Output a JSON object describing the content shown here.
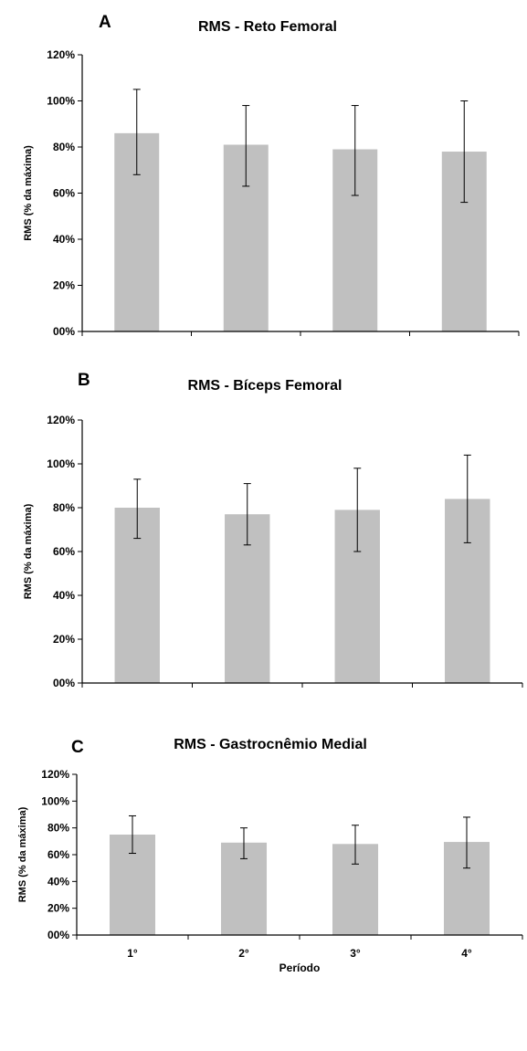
{
  "figure": {
    "xlabel": "Período",
    "ylabel": "RMS (% da máxima)",
    "bar_color": "#c0c0c0",
    "axis_color": "#000000",
    "error_bar_color": "#000000"
  },
  "chart_data": [
    {
      "type": "bar",
      "panel": "A",
      "title": "RMS - Reto Femoral",
      "ylabel": "RMS (% da máxima)",
      "xlabel": "",
      "categories": [
        "1°",
        "2°",
        "3°",
        "4°"
      ],
      "show_category_labels": false,
      "values": [
        86,
        81,
        79,
        78
      ],
      "error_low": [
        68,
        63,
        59,
        56
      ],
      "error_high": [
        105,
        98,
        98,
        100
      ],
      "ylim": [
        0,
        120
      ],
      "yticks": [
        "00%",
        "20%",
        "40%",
        "60%",
        "80%",
        "100%",
        "120%"
      ],
      "grid": false,
      "legend": "none"
    },
    {
      "type": "bar",
      "panel": "B",
      "title": "RMS - Bíceps Femoral",
      "ylabel": "RMS (% da máxima)",
      "xlabel": "",
      "categories": [
        "1°",
        "2°",
        "3°",
        "4°"
      ],
      "show_category_labels": false,
      "values": [
        80,
        77,
        79,
        84
      ],
      "error_low": [
        66,
        63,
        60,
        64
      ],
      "error_high": [
        93,
        91,
        98,
        104
      ],
      "ylim": [
        0,
        120
      ],
      "yticks": [
        "00%",
        "20%",
        "40%",
        "60%",
        "80%",
        "100%",
        "120%"
      ],
      "grid": false,
      "legend": "none"
    },
    {
      "type": "bar",
      "panel": "C",
      "title": "RMS - Gastrocnêmio Medial",
      "ylabel": "RMS (% da máxima)",
      "xlabel": "Período",
      "categories": [
        "1°",
        "2°",
        "3°",
        "4°"
      ],
      "show_category_labels": true,
      "values": [
        75,
        69,
        68,
        69.5
      ],
      "error_low": [
        61,
        57,
        53,
        50
      ],
      "error_high": [
        89,
        80,
        82,
        88
      ],
      "ylim": [
        0,
        120
      ],
      "yticks": [
        "00%",
        "20%",
        "40%",
        "60%",
        "80%",
        "100%",
        "120%"
      ],
      "grid": false,
      "legend": "none"
    }
  ]
}
